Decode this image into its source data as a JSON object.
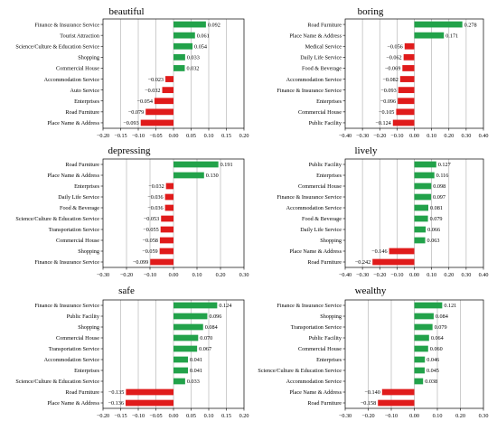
{
  "colors": {
    "positive": "#22a24a",
    "negative": "#e01b1b",
    "grid": "#b8b8b8",
    "axis": "#000000"
  },
  "chart_data": [
    {
      "type": "bar",
      "title": "beautiful",
      "orientation": "horizontal",
      "categories": [
        "Finance & Insurance Service",
        "Tourist Attraction",
        "Science/Culture & Education Service",
        "Shopping",
        "Commercial House",
        "Accommodation Service",
        "Auto Service",
        "Enterprises",
        "Road Furniture",
        "Place Name & Address"
      ],
      "values": [
        0.092,
        0.061,
        0.054,
        0.033,
        0.032,
        -0.023,
        -0.032,
        -0.054,
        -0.079,
        -0.093
      ],
      "value_labels": [
        "0.092",
        "0.061",
        "0.054",
        "0.033",
        "0.032",
        "−0.023",
        "−0.032",
        "−0.054",
        "−0.079",
        "−0.093"
      ],
      "xlim": [
        -0.2,
        0.2
      ],
      "xticks": [
        -0.2,
        -0.15,
        -0.1,
        -0.05,
        0,
        0.05,
        0.1,
        0.15,
        0.2
      ],
      "xtick_labels": [
        "−0.20",
        "−0.15",
        "−0.10",
        "−0.05",
        "0.00",
        "0.05",
        "0.10",
        "0.15",
        "0.20"
      ],
      "grid": true
    },
    {
      "type": "bar",
      "title": "boring",
      "orientation": "horizontal",
      "categories": [
        "Road Furniture",
        "Place Name & Address",
        "Medical Service",
        "Daily Life Service",
        "Food & Beverage",
        "Accommodation Service",
        "Finance & Insurance Service",
        "Enterprises",
        "Commercial House",
        "Public Facility"
      ],
      "values": [
        0.278,
        0.171,
        -0.056,
        -0.062,
        -0.069,
        -0.082,
        -0.093,
        -0.096,
        -0.105,
        -0.124
      ],
      "value_labels": [
        "0.278",
        "0.171",
        "−0.056",
        "−0.062",
        "−0.069",
        "−0.082",
        "−0.093",
        "−0.096",
        "−0.105",
        "−0.124"
      ],
      "xlim": [
        -0.4,
        0.4
      ],
      "xticks": [
        -0.4,
        -0.3,
        -0.2,
        -0.1,
        0,
        0.1,
        0.2,
        0.3,
        0.4
      ],
      "xtick_labels": [
        "−0.40",
        "−0.30",
        "−0.20",
        "−0.10",
        "0.00",
        "0.10",
        "0.20",
        "0.30",
        "0.40"
      ],
      "grid": true
    },
    {
      "type": "bar",
      "title": "depressing",
      "orientation": "horizontal",
      "categories": [
        "Road Furniture",
        "Place Name & Address",
        "Enterprises",
        "Daily Life Service",
        "Food & Beverage",
        "Science/Culture & Education Service",
        "Transportation Service",
        "Commercial House",
        "Shopping",
        "Finance & Insurance Service"
      ],
      "values": [
        0.191,
        0.13,
        -0.032,
        -0.036,
        -0.036,
        -0.053,
        -0.055,
        -0.058,
        -0.059,
        -0.099
      ],
      "value_labels": [
        "0.191",
        "0.130",
        "−0.032",
        "−0.036",
        "−0.036",
        "−0.053",
        "−0.055",
        "−0.058",
        "−0.059",
        "−0.099"
      ],
      "xlim": [
        -0.3,
        0.3
      ],
      "xticks": [
        -0.3,
        -0.2,
        -0.1,
        0,
        0.1,
        0.2,
        0.3
      ],
      "xtick_labels": [
        "−0.30",
        "−0.20",
        "−0.10",
        "0.00",
        "0.10",
        "0.20",
        "0.30"
      ],
      "grid": true
    },
    {
      "type": "bar",
      "title": "lively",
      "orientation": "horizontal",
      "categories": [
        "Public Facility",
        "Enterprises",
        "Commercial House",
        "Finance & Insurance Service",
        "Accommodation Service",
        "Food & Beverage",
        "Daily Life Service",
        "Shopping",
        "Place Name & Address",
        "Road Furniture"
      ],
      "values": [
        0.127,
        0.116,
        0.098,
        0.097,
        0.081,
        0.079,
        0.066,
        0.063,
        -0.146,
        -0.242
      ],
      "value_labels": [
        "0.127",
        "0.116",
        "0.098",
        "0.097",
        "0.081",
        "0.079",
        "0.066",
        "0.063",
        "−0.146",
        "−0.242"
      ],
      "xlim": [
        -0.4,
        0.4
      ],
      "xticks": [
        -0.4,
        -0.3,
        -0.2,
        -0.1,
        0,
        0.1,
        0.2,
        0.3,
        0.4
      ],
      "xtick_labels": [
        "−0.40",
        "−0.30",
        "−0.20",
        "−0.10",
        "0.00",
        "0.10",
        "0.20",
        "0.30",
        "0.40"
      ],
      "grid": true
    },
    {
      "type": "bar",
      "title": "safe",
      "orientation": "horizontal",
      "categories": [
        "Finance & Insurance Service",
        "Public Facility",
        "Shopping",
        "Commercial House",
        "Transportation Service",
        "Accommodation Service",
        "Enterprises",
        "Science/Culture & Education Service",
        "Road Furniture",
        "Place Name & Address"
      ],
      "values": [
        0.124,
        0.096,
        0.084,
        0.07,
        0.067,
        0.041,
        0.041,
        0.033,
        -0.135,
        -0.136
      ],
      "value_labels": [
        "0.124",
        "0.096",
        "0.084",
        "0.070",
        "0.067",
        "0.041",
        "0.041",
        "0.033",
        "−0.135",
        "−0.136"
      ],
      "xlim": [
        -0.2,
        0.2
      ],
      "xticks": [
        -0.2,
        -0.15,
        -0.1,
        -0.05,
        0,
        0.05,
        0.1,
        0.15,
        0.2
      ],
      "xtick_labels": [
        "−0.20",
        "−0.15",
        "−0.10",
        "−0.05",
        "0.00",
        "0.05",
        "0.10",
        "0.15",
        "0.20"
      ],
      "grid": true
    },
    {
      "type": "bar",
      "title": "wealthy",
      "orientation": "horizontal",
      "categories": [
        "Finance & Insurance Service",
        "Shopping",
        "Transportation Service",
        "Public Facility",
        "Commercial House",
        "Enterprises",
        "Science/Culture & Education Service",
        "Accommodation Service",
        "Place Name & Address",
        "Road Furniture"
      ],
      "values": [
        0.121,
        0.084,
        0.079,
        0.064,
        0.06,
        0.046,
        0.045,
        0.038,
        -0.14,
        -0.158
      ],
      "value_labels": [
        "0.121",
        "0.084",
        "0.079",
        "0.064",
        "0.060",
        "0.046",
        "0.045",
        "0.038",
        "−0.140",
        "−0.158"
      ],
      "xlim": [
        -0.3,
        0.3
      ],
      "xticks": [
        -0.3,
        -0.2,
        -0.1,
        0,
        0.1,
        0.2,
        0.3
      ],
      "xtick_labels": [
        "−0.30",
        "−0.20",
        "−0.10",
        "0.00",
        "0.10",
        "0.20",
        "0.30"
      ],
      "grid": true
    }
  ]
}
